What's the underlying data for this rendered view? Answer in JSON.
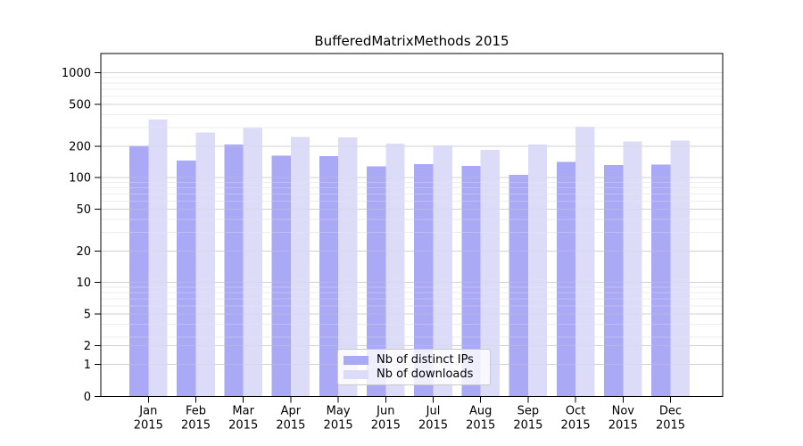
{
  "chart_data": {
    "type": "bar",
    "title": "BufferedMatrixMethods 2015",
    "categories": [
      "Jan",
      "Feb",
      "Mar",
      "Apr",
      "May",
      "Jun",
      "Jul",
      "Aug",
      "Sep",
      "Oct",
      "Nov",
      "Dec"
    ],
    "year_label": "2015",
    "series": [
      {
        "name": "Nb of distinct IPs",
        "color": "#a9a9f5",
        "values": [
          202,
          146,
          207,
          163,
          161,
          128,
          135,
          129,
          106,
          142,
          132,
          133
        ]
      },
      {
        "name": "Nb of downloads",
        "color": "#dcdcf9",
        "values": [
          358,
          270,
          299,
          246,
          243,
          212,
          203,
          184,
          207,
          307,
          222,
          227
        ]
      }
    ],
    "yscale": "log",
    "yticks": [
      0,
      1,
      2,
      5,
      10,
      20,
      50,
      100,
      200,
      500,
      1000
    ],
    "ylim": [
      0,
      1500
    ],
    "xlabel": "",
    "ylabel": "",
    "grid": true,
    "legend_position": "lower center"
  },
  "colors": {
    "background": "#ffffff",
    "axis": "#000000",
    "grid_major": "#d2d2d2",
    "grid_minor": "#ededed",
    "legend_border": "#c9c9c9"
  }
}
